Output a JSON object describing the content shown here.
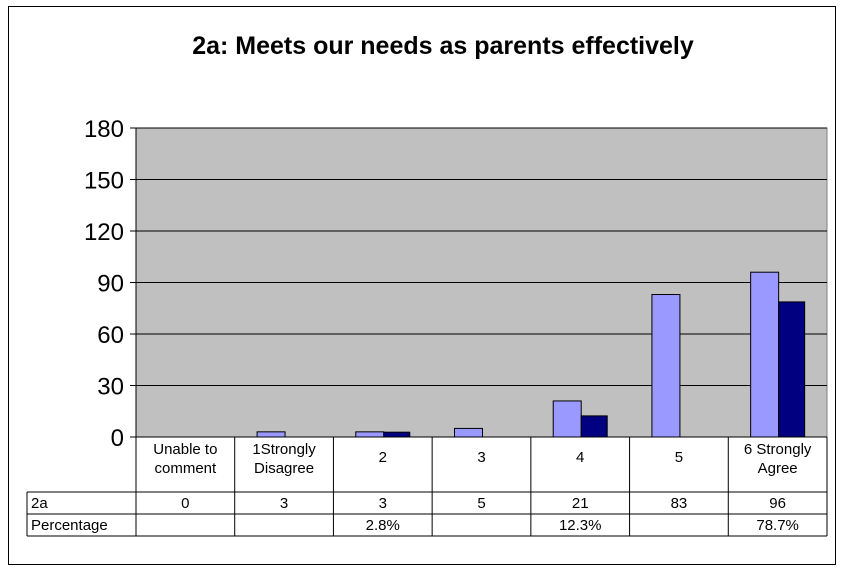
{
  "chart_data": {
    "type": "bar",
    "title": "2a: Meets our needs as parents effectively",
    "categories": [
      "Unable to comment",
      "1Strongly Disagree",
      "2",
      "3",
      "4",
      "5",
      "6 Strongly Agree"
    ],
    "category_lines": [
      [
        "Unable to",
        "comment"
      ],
      [
        "1Strongly",
        "Disagree"
      ],
      [
        "2"
      ],
      [
        "3"
      ],
      [
        "4"
      ],
      [
        "5"
      ],
      [
        "6 Strongly",
        "Agree"
      ]
    ],
    "series": [
      {
        "name": "2a",
        "values": [
          0,
          3,
          3,
          5,
          21,
          83,
          96
        ],
        "color": "#9999ff"
      },
      {
        "name": "Percentage",
        "values": [
          null,
          null,
          2.8,
          null,
          12.3,
          null,
          78.7
        ],
        "labels": [
          "",
          "",
          "2.8%",
          "",
          "12.3%",
          "",
          "78.7%"
        ],
        "color": "#000080"
      }
    ],
    "ylim": [
      0,
      180
    ],
    "yticks": [
      0,
      30,
      60,
      90,
      120,
      150,
      180
    ],
    "grid": true,
    "plot_background": "#c0c0c0",
    "data_table": true
  }
}
